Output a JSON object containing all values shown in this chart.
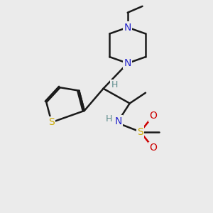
{
  "bg_color": "#ebebeb",
  "bond_color": "#1a1a1a",
  "atom_colors": {
    "N": "#2222cc",
    "S_thio": "#ccaa00",
    "S_sulfo": "#ccaa00",
    "O": "#cc0000",
    "H": "#5a8a8a",
    "C": "#1a1a1a"
  },
  "lw": 1.8,
  "fs": 10
}
